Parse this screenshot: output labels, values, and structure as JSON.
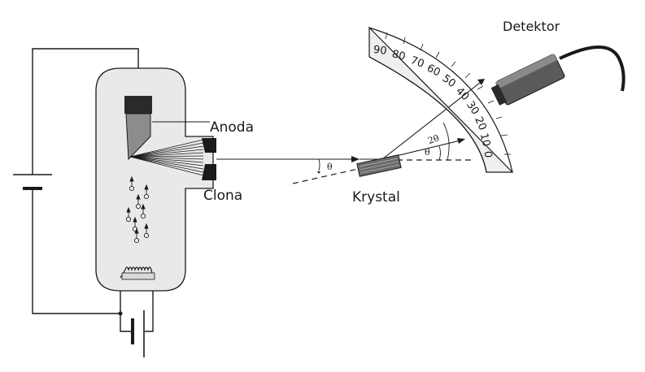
{
  "labels": {
    "anoda": "Anoda",
    "clona": "Clona",
    "krystal": "Krystal",
    "detektor": "Detektor",
    "theta_left": "θ",
    "theta_right": "θ",
    "two_theta": "2θ"
  },
  "scale_marks": [
    "90",
    "80",
    "70",
    "60",
    "50",
    "40",
    "30",
    "20",
    "10",
    "0"
  ],
  "colors": {
    "line": "#1a1a1a",
    "tube_fill": "#e9e9e9",
    "anode_dark": "#2a2a2a",
    "anode_gray": "#8c8c8c",
    "scale_fill": "#efefef",
    "crystal": "#6b6b6b",
    "detector": "#5a5a5a"
  }
}
